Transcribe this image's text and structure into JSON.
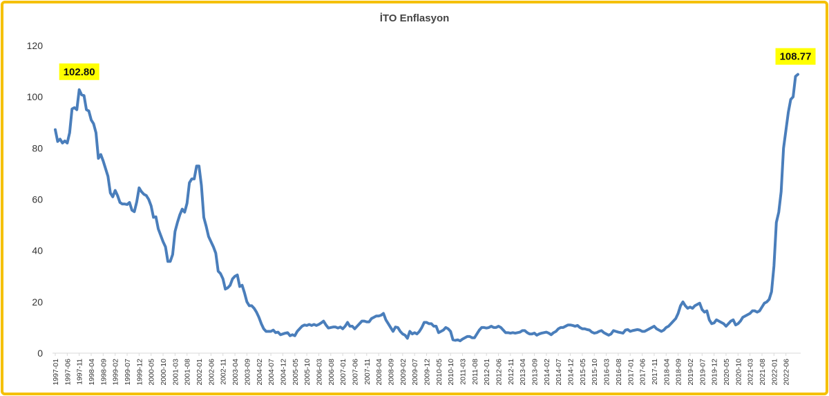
{
  "chart_data": {
    "type": "line",
    "title": "İTO Enflasyon",
    "xlabel": "",
    "ylabel": "",
    "ylim": [
      0,
      120
    ],
    "yticks": [
      0,
      20,
      40,
      60,
      80,
      100,
      120
    ],
    "grid": false,
    "colors": {
      "line": "#4a7ebb",
      "callout_bg": "#ffff00",
      "frame": "#f5c000"
    },
    "x_tick_labels": [
      "1997-01",
      "1997-06",
      "1997-11",
      "1998-04",
      "1998-09",
      "1999-02",
      "1999-07",
      "1999-12",
      "2000-05",
      "2000-10",
      "2001-03",
      "2001-08",
      "2002-01",
      "2002-06",
      "2002-11",
      "2003-04",
      "2003-09",
      "2004-02",
      "2004-07",
      "2004-12",
      "2005-05",
      "2005-10",
      "2006-03",
      "2006-08",
      "2007-01",
      "2007-06",
      "2007-11",
      "2008-04",
      "2008-09",
      "2009-02",
      "2009-07",
      "2009-12",
      "2010-05",
      "2010-10",
      "2011-03",
      "2011-08",
      "2012-01",
      "2012-06",
      "2012-11",
      "2013-04",
      "2013-09",
      "2014-02",
      "2014-07",
      "2014-12",
      "2015-05",
      "2015-10",
      "2016-03",
      "2016-08",
      "2017-01",
      "2017-06",
      "2017-11",
      "2018-04",
      "2018-09",
      "2019-02",
      "2019-07",
      "2019-12",
      "2020-05",
      "2020-10",
      "2021-03",
      "2021-08",
      "2022-01",
      "2022-06"
    ],
    "annotations": [
      {
        "label": "102.80",
        "x": "1997-11",
        "y": 102.8
      },
      {
        "label": "108.77",
        "x": "2022-10",
        "y": 108.77
      }
    ],
    "series": [
      {
        "start": "1997-01",
        "frequency": "monthly",
        "values": [
          87.2,
          82.6,
          83.5,
          82.0,
          82.8,
          82.0,
          86.0,
          95.3,
          95.8,
          95.0,
          102.8,
          100.8,
          100.5,
          95.0,
          94.5,
          91.0,
          89.5,
          86.0,
          76.0,
          77.5,
          75.0,
          72.0,
          69.0,
          62.5,
          61.0,
          63.5,
          61.5,
          58.8,
          58.2,
          58.2,
          58.0,
          58.8,
          55.8,
          55.2,
          59.0,
          64.5,
          63.0,
          62.0,
          61.5,
          60.0,
          57.5,
          53.0,
          53.2,
          48.5,
          46.0,
          43.5,
          41.5,
          35.8,
          35.8,
          38.5,
          47.5,
          51.0,
          54.0,
          56.2,
          55.0,
          58.5,
          66.5,
          68.0,
          68.0,
          73.0,
          73.0,
          65.5,
          53.0,
          49.5,
          45.5,
          43.5,
          41.5,
          39.0,
          32.0,
          31.0,
          29.0,
          25.0,
          25.5,
          26.5,
          29.0,
          30.0,
          30.5,
          26.0,
          26.5,
          23.5,
          20.0,
          18.5,
          18.5,
          17.5,
          16.0,
          14.0,
          11.5,
          9.5,
          8.5,
          8.5,
          8.5,
          9.0,
          8.0,
          8.2,
          7.2,
          7.5,
          7.8,
          8.0,
          6.8,
          7.2,
          6.8,
          8.5,
          9.5,
          10.5,
          11.0,
          10.8,
          11.2,
          10.8,
          11.2,
          10.8,
          11.2,
          11.8,
          12.5,
          11.0,
          9.8,
          10.0,
          10.2,
          10.2,
          9.8,
          10.2,
          9.5,
          10.5,
          12.0,
          10.5,
          10.5,
          9.5,
          10.5,
          11.5,
          12.5,
          12.5,
          12.2,
          12.2,
          13.5,
          14.0,
          14.5,
          14.5,
          14.8,
          15.5,
          13.0,
          11.5,
          10.0,
          8.5,
          10.2,
          10.0,
          8.5,
          7.5,
          7.0,
          5.8,
          8.5,
          7.5,
          8.0,
          7.5,
          8.5,
          10.0,
          12.0,
          12.0,
          11.5,
          11.5,
          10.5,
          10.5,
          8.0,
          8.5,
          9.0,
          10.0,
          9.5,
          8.5,
          5.2,
          5.0,
          5.2,
          4.8,
          5.5,
          6.0,
          6.5,
          6.5,
          6.0,
          6.0,
          7.5,
          9.0,
          10.0,
          10.0,
          9.8,
          10.0,
          10.5,
          10.0,
          10.0,
          10.5,
          10.0,
          9.0,
          8.0,
          8.0,
          7.8,
          8.0,
          7.8,
          8.0,
          8.2,
          8.8,
          8.8,
          8.0,
          7.5,
          7.5,
          7.8,
          7.0,
          7.5,
          7.8,
          8.0,
          8.2,
          7.8,
          7.2,
          8.0,
          8.5,
          9.5,
          10.0,
          10.0,
          10.5,
          11.0,
          11.0,
          10.8,
          10.5,
          10.8,
          10.0,
          9.5,
          9.5,
          9.2,
          9.0,
          8.2,
          7.8,
          8.0,
          8.5,
          8.8,
          8.0,
          7.5,
          7.0,
          7.5,
          8.8,
          8.5,
          8.2,
          8.0,
          7.8,
          9.0,
          9.2,
          8.5,
          8.8,
          9.0,
          9.2,
          9.0,
          8.5,
          8.5,
          9.0,
          9.5,
          10.0,
          10.5,
          9.5,
          9.0,
          8.5,
          9.0,
          10.0,
          10.5,
          11.5,
          12.5,
          13.5,
          15.5,
          18.5,
          20.0,
          18.5,
          17.5,
          18.0,
          17.5,
          18.5,
          19.0,
          19.5,
          17.0,
          16.0,
          16.5,
          13.0,
          11.5,
          11.8,
          13.0,
          12.5,
          12.0,
          11.5,
          10.5,
          11.5,
          12.5,
          13.0,
          11.0,
          11.5,
          12.5,
          14.0,
          14.5,
          15.0,
          15.5,
          16.5,
          16.5,
          16.0,
          16.5,
          18.0,
          19.5,
          20.0,
          21.0,
          24.0,
          34.0,
          51.0,
          55.0,
          63.0,
          80.0,
          87.0,
          94.0,
          99.0,
          100.0,
          108.0,
          108.77
        ]
      }
    ]
  }
}
